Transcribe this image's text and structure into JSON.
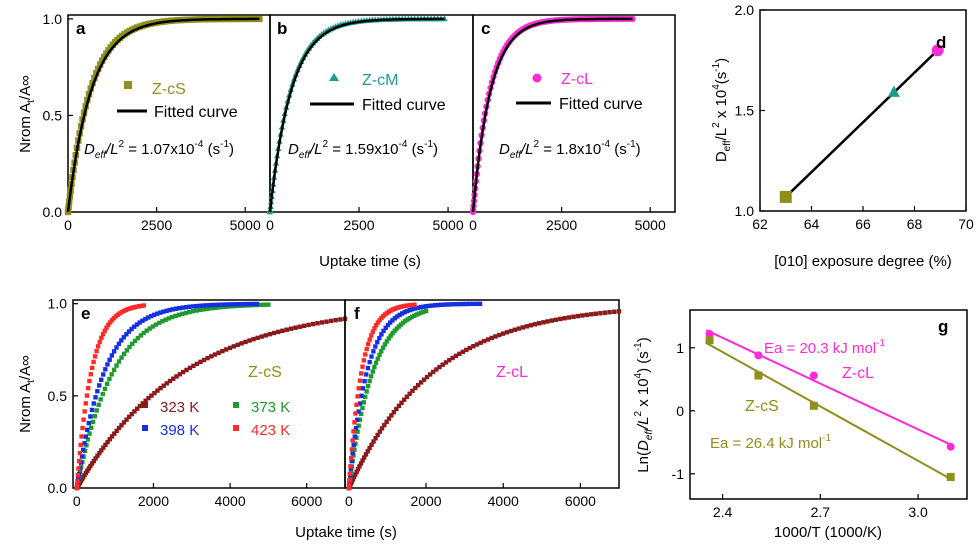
{
  "figure": {
    "uptake_xlabel": "Uptake time (s)",
    "nrom_ylabel_main": "Nrom A",
    "nrom_ylabel_sub": "t",
    "nrom_ylabel_tail": "/A∞"
  },
  "colors": {
    "olive": "#8f8f1a",
    "teal": "#1f9a8c",
    "magenta": "#ff2bd6",
    "maroon": "#8b1a1a",
    "green": "#1f9a2f",
    "blue": "#1530e0",
    "red": "#ff2a2a",
    "black": "#000000"
  },
  "chart_data": [
    {
      "id": "a",
      "type": "scatter",
      "panel_label": "a",
      "xlim": [
        0,
        5700
      ],
      "ylim": [
        0,
        1.02
      ],
      "xticks": [
        "0",
        "2500",
        "5000"
      ],
      "xtick_values": [
        0,
        2500,
        5000
      ],
      "yticks": [
        "0.0",
        "0.5",
        "1.0"
      ],
      "ytick_values": [
        0,
        0.5,
        1.0
      ],
      "series": [
        {
          "name": "Z-cS",
          "marker": "square",
          "color": "#8f8f1a",
          "tau": 630,
          "x_max": 5400,
          "count": 80
        },
        {
          "name": "Fitted curve",
          "style": "line",
          "color": "#000000",
          "tau": 660,
          "x_max": 5400
        }
      ],
      "annotation": {
        "d": "D",
        "eff": "eff",
        "l": "/L",
        "sq": "2",
        "eq": " = 1.07x10",
        "exp": "-4",
        "unit": " (s",
        "unit_exp": "-1",
        "close": ")"
      }
    },
    {
      "id": "b",
      "type": "scatter",
      "panel_label": "b",
      "xlim": [
        0,
        5700
      ],
      "ylim": [
        0,
        1.02
      ],
      "xticks": [
        "0",
        "2500",
        "5000"
      ],
      "xtick_values": [
        0,
        2500,
        5000
      ],
      "series": [
        {
          "name": "Z-cM",
          "marker": "triangle",
          "color": "#1f9a8c",
          "tau": 580,
          "x_max": 4900,
          "count": 80
        },
        {
          "name": "Fitted curve",
          "style": "line",
          "color": "#000000",
          "tau": 600,
          "x_max": 4900
        }
      ],
      "annotation": {
        "d": "D",
        "eff": "eff",
        "l": "/L",
        "sq": "2",
        "eq": " = 1.59x10",
        "exp": "-4",
        "unit": " (s",
        "unit_exp": "-1",
        "close": ")"
      }
    },
    {
      "id": "c",
      "type": "scatter",
      "panel_label": "c",
      "xlim": [
        0,
        5700
      ],
      "ylim": [
        0,
        1.02
      ],
      "xticks": [
        "0",
        "2500",
        "5000"
      ],
      "xtick_values": [
        0,
        2500,
        5000
      ],
      "series": [
        {
          "name": "Z-cL",
          "marker": "circle",
          "color": "#ff2bd6",
          "tau": 480,
          "x_max": 4500,
          "count": 80
        },
        {
          "name": "Fitted curve",
          "style": "line",
          "color": "#000000",
          "tau": 500,
          "x_max": 4500
        }
      ],
      "annotation": {
        "d": "D",
        "eff": "eff",
        "l": "/L",
        "sq": "2",
        "eq": " = 1.8x10",
        "exp": "-4",
        "unit": " (s",
        "unit_exp": "-1",
        "close": ")"
      }
    },
    {
      "id": "d",
      "type": "line",
      "panel_label": "d",
      "xlim": [
        62,
        70
      ],
      "ylim": [
        1.0,
        2.0
      ],
      "xticks": [
        "62",
        "64",
        "66",
        "68",
        "70"
      ],
      "xtick_values": [
        62,
        64,
        66,
        68,
        70
      ],
      "yticks": [
        "1.0",
        "1.5",
        "2.0"
      ],
      "ytick_values": [
        1.0,
        1.5,
        2.0
      ],
      "xlabel": "[010] exposure degree (%)",
      "ylabel": {
        "d": "D",
        "eff": "eff",
        "l": "/L",
        "sq": "2",
        "x": " x 10",
        "exp": "4",
        "unit": "(s",
        "unit_exp": "-1",
        "close": ")"
      },
      "fit": {
        "x": [
          63,
          68.9
        ],
        "y": [
          1.07,
          1.8
        ]
      },
      "points": [
        {
          "name": "Z-cS",
          "x": 63.0,
          "y": 1.07,
          "marker": "square",
          "color": "#8f8f1a"
        },
        {
          "name": "Z-cM",
          "x": 67.2,
          "y": 1.59,
          "marker": "triangle",
          "color": "#1f9a8c"
        },
        {
          "name": "Z-cL",
          "x": 68.9,
          "y": 1.8,
          "marker": "circle",
          "color": "#ff2bd6"
        }
      ]
    },
    {
      "id": "e",
      "type": "scatter",
      "panel_label": "e",
      "xlim": [
        -100,
        7000
      ],
      "ylim": [
        0,
        1.02
      ],
      "xticks": [
        "0",
        "2000",
        "4000",
        "6000"
      ],
      "xtick_values": [
        0,
        2000,
        4000,
        6000
      ],
      "yticks": [
        "0.0",
        "0.5",
        "1.0"
      ],
      "ytick_values": [
        0,
        0.5,
        1.0
      ],
      "sample_label": "Z-cS",
      "series": [
        {
          "name": "323 K",
          "color": "#8b1a1a",
          "tau": 2800,
          "x_max": 7000,
          "count": 90
        },
        {
          "name": "373 K",
          "color": "#1f9a2f",
          "tau": 950,
          "x_max": 5000,
          "count": 70
        },
        {
          "name": "398 K",
          "color": "#1530e0",
          "tau": 720,
          "x_max": 4700,
          "count": 70
        },
        {
          "name": "423 K",
          "color": "#ff2a2a",
          "tau": 380,
          "x_max": 1750,
          "count": 45
        }
      ]
    },
    {
      "id": "f",
      "type": "scatter",
      "panel_label": "f",
      "xlim": [
        -100,
        7000
      ],
      "ylim": [
        0,
        1.02
      ],
      "xticks": [
        "0",
        "2000",
        "4000",
        "6000"
      ],
      "xtick_values": [
        0,
        2000,
        4000,
        6000
      ],
      "sample_label": "Z-cL",
      "series": [
        {
          "name": "323 K",
          "color": "#8b1a1a",
          "tau": 2200,
          "x_max": 7000,
          "count": 90
        },
        {
          "name": "373 K",
          "color": "#1f9a2f",
          "tau": 620,
          "x_max": 2000,
          "count": 50
        },
        {
          "name": "398 K",
          "color": "#1530e0",
          "tau": 470,
          "x_max": 3400,
          "count": 60
        },
        {
          "name": "423 K",
          "color": "#ff2a2a",
          "tau": 330,
          "x_max": 1700,
          "count": 45
        }
      ]
    },
    {
      "id": "g",
      "type": "line",
      "panel_label": "g",
      "xlim": [
        2.3,
        3.15
      ],
      "ylim": [
        -1.4,
        1.6
      ],
      "xticks": [
        "2.4",
        "2.7",
        "3.0"
      ],
      "xtick_values": [
        2.4,
        2.7,
        3.0
      ],
      "yticks": [
        "-1",
        "0",
        "1"
      ],
      "ytick_values": [
        -1,
        0,
        1
      ],
      "xlabel": "1000/T (1000/K)",
      "ylabel": {
        "ln": "Ln(",
        "d": "D",
        "eff": "eff",
        "l": "/L",
        "sq": "2",
        "x": " x 10",
        "exp": "4",
        "close": ")",
        "unit": " (s",
        "unit_exp": "-1",
        "close2": ")"
      },
      "series": [
        {
          "name": "Z-cL",
          "color": "#ff2bd6",
          "marker": "circle",
          "x": [
            2.36,
            2.51,
            2.68,
            3.1
          ],
          "y": [
            1.22,
            0.88,
            0.56,
            -0.57
          ],
          "ea_prefix": "Ea = 20.3  kJ mol",
          "ea_exp": "-1"
        },
        {
          "name": "Z-cS",
          "color": "#8f8f1a",
          "marker": "square",
          "x": [
            2.36,
            2.51,
            2.68,
            3.1
          ],
          "y": [
            1.12,
            0.56,
            0.08,
            -1.05
          ],
          "ea_prefix": "Ea = 26.4 kJ mol",
          "ea_exp": "-1"
        }
      ]
    }
  ]
}
